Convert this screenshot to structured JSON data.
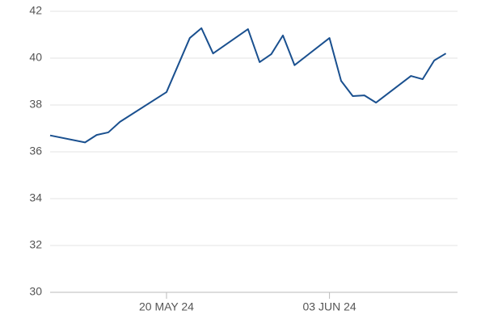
{
  "chart_data": {
    "type": "line",
    "x": [
      "2024-05-10",
      "2024-05-13",
      "2024-05-14",
      "2024-05-15",
      "2024-05-16",
      "2024-05-20",
      "2024-05-22",
      "2024-05-23",
      "2024-05-24",
      "2024-05-27",
      "2024-05-28",
      "2024-05-29",
      "2024-05-30",
      "2024-05-31",
      "2024-06-03",
      "2024-06-04",
      "2024-06-05",
      "2024-06-06",
      "2024-06-07",
      "2024-06-10",
      "2024-06-11",
      "2024-06-12",
      "2024-06-13"
    ],
    "series": [
      {
        "color": "#1a508f",
        "values": [
          36.7,
          36.4,
          36.72,
          36.83,
          37.28,
          38.55,
          40.86,
          41.28,
          40.2,
          41.24,
          39.83,
          40.17,
          40.97,
          39.7,
          40.86,
          39.03,
          38.38,
          38.41,
          38.1,
          39.24,
          39.1,
          39.9,
          40.2
        ]
      }
    ],
    "xlim": [
      "2024-05-10",
      "2024-06-14"
    ],
    "xticks": [
      {
        "value": "2024-05-20",
        "label": "20 MAY 24"
      },
      {
        "value": "2024-06-03",
        "label": "03 JUN 24"
      }
    ],
    "ylim": [
      30,
      42
    ],
    "yticks": [
      30,
      32,
      34,
      36,
      38,
      40,
      42
    ],
    "grid": true
  }
}
